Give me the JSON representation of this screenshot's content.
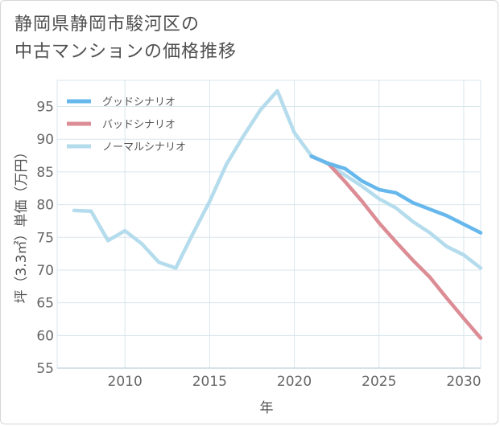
{
  "title_lines": [
    "静岡県静岡市駿河区の",
    "中古マンションの価格推移"
  ],
  "chart_data": {
    "type": "line",
    "title": "静岡県静岡市駿河区の中古マンションの価格推移",
    "xlabel": "年",
    "ylabel": "坪（3.3㎡）単価（万円）",
    "xlim": [
      2006,
      2031
    ],
    "ylim": [
      55,
      99
    ],
    "xticks": [
      2010,
      2015,
      2020,
      2025,
      2030
    ],
    "yticks": [
      55,
      60,
      65,
      70,
      75,
      80,
      85,
      90,
      95
    ],
    "grid": true,
    "legend_position": "top-left",
    "series": [
      {
        "name": "グッドシナリオ",
        "color": "#66b8ec",
        "x": [
          2021,
          2022,
          2023,
          2024,
          2025,
          2026,
          2027,
          2028,
          2029,
          2030,
          2031
        ],
        "y": [
          87.4,
          86.3,
          85.5,
          83.6,
          82.3,
          81.8,
          80.3,
          79.3,
          78.3,
          77.0,
          75.7
        ]
      },
      {
        "name": "バッドシナリオ",
        "color": "#dc8c94",
        "x": [
          2021,
          2022,
          2023,
          2024,
          2025,
          2026,
          2027,
          2028,
          2029,
          2030,
          2031
        ],
        "y": [
          87.4,
          86.3,
          83.5,
          80.5,
          77.2,
          74.3,
          71.5,
          68.9,
          65.7,
          62.6,
          59.6
        ]
      },
      {
        "name": "ノーマルシナリオ",
        "color": "#b4dcec",
        "x": [
          2007,
          2008,
          2009,
          2010,
          2011,
          2012,
          2013,
          2014,
          2015,
          2016,
          2017,
          2018,
          2019,
          2020,
          2021,
          2022,
          2023,
          2024,
          2025,
          2026,
          2027,
          2028,
          2029,
          2030,
          2031
        ],
        "y": [
          79.1,
          79.0,
          74.5,
          76.0,
          74.0,
          71.2,
          70.3,
          75.5,
          80.5,
          86.2,
          90.5,
          94.5,
          97.4,
          91.0,
          87.5,
          86.2,
          84.5,
          82.8,
          80.9,
          79.5,
          77.4,
          75.7,
          73.6,
          72.3,
          70.3
        ]
      }
    ]
  }
}
